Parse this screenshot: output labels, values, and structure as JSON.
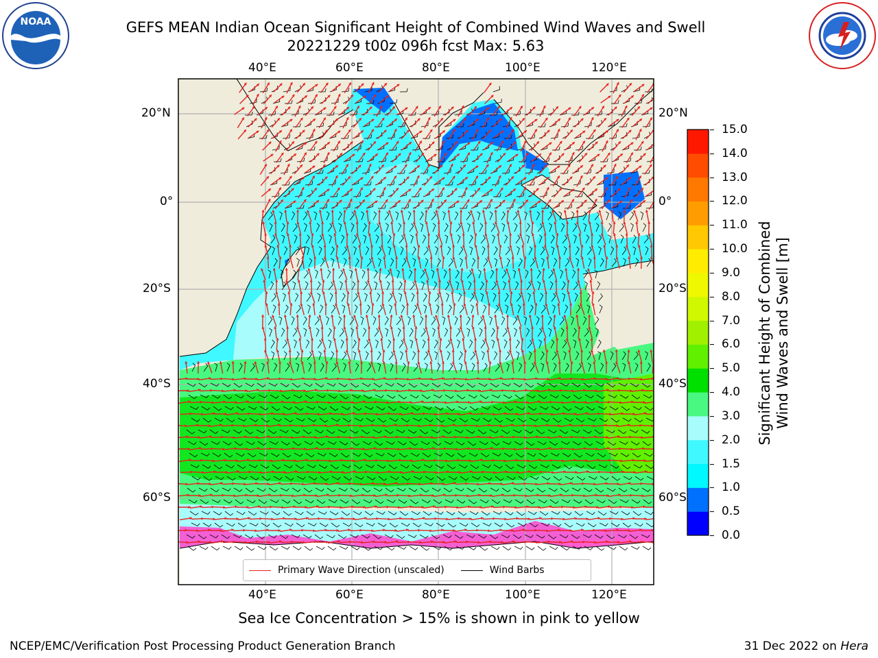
{
  "header": {
    "title": "GEFS MEAN Indian Ocean Significant Height of Combined Wind Waves and Swell",
    "subtitle": "20221229 t00z 096h fcst   Max: 5.63"
  },
  "logos": {
    "left": "NOAA",
    "left_ring_text": "NATIONAL OCEANIC AND ATMOSPHERIC ADMINISTRATION · U.S. DEPARTMENT OF COMMERCE",
    "right_ring_text": "NATIONAL WEATHER SERVICE"
  },
  "map": {
    "lon_labels": [
      "40°E",
      "60°E",
      "80°E",
      "100°E",
      "120°E"
    ],
    "lat_labels": [
      "20°N",
      "0°",
      "20°S",
      "40°S",
      "60°S"
    ],
    "lon_range": [
      20,
      130
    ],
    "lat_range": [
      -73,
      28
    ],
    "colors": {
      "land": "#efecdc",
      "primary_wave_direction": "#e8201c",
      "wind_barbs": "#000000",
      "sea_ice": "#ff44cc"
    }
  },
  "legend": {
    "items": [
      {
        "label": "Primary Wave Direction (unscaled)",
        "color": "#e8201c"
      },
      {
        "label": "Wind Barbs",
        "color": "#000000"
      }
    ]
  },
  "colorbar": {
    "title_line1": "Significant Height of Combined",
    "title_line2": "Wind Waves and Swell [m]",
    "ticks": [
      "0.0",
      "0.5",
      "1.0",
      "1.5",
      "2.0",
      "3.0",
      "4.0",
      "5.0",
      "6.0",
      "7.0",
      "8.0",
      "9.0",
      "10.0",
      "11.0",
      "12.0",
      "13.0",
      "14.0",
      "15.0"
    ],
    "colors": [
      "#0000ff",
      "#0070ff",
      "#00f8ff",
      "#40f8ff",
      "#a8fcfc",
      "#48f880",
      "#00e000",
      "#60f000",
      "#a0f000",
      "#d0f800",
      "#f0f800",
      "#ffec00",
      "#ffc800",
      "#ff9c00",
      "#ff7800",
      "#ff4c00",
      "#ff1800"
    ]
  },
  "caption": "Sea Ice Concentration > 15% is shown in pink to yellow",
  "footer": {
    "left": "NCEP/EMC/Verification Post Processing Product Generation Branch",
    "right_prefix": "31 Dec 2022 on ",
    "right_host": "Hera"
  }
}
